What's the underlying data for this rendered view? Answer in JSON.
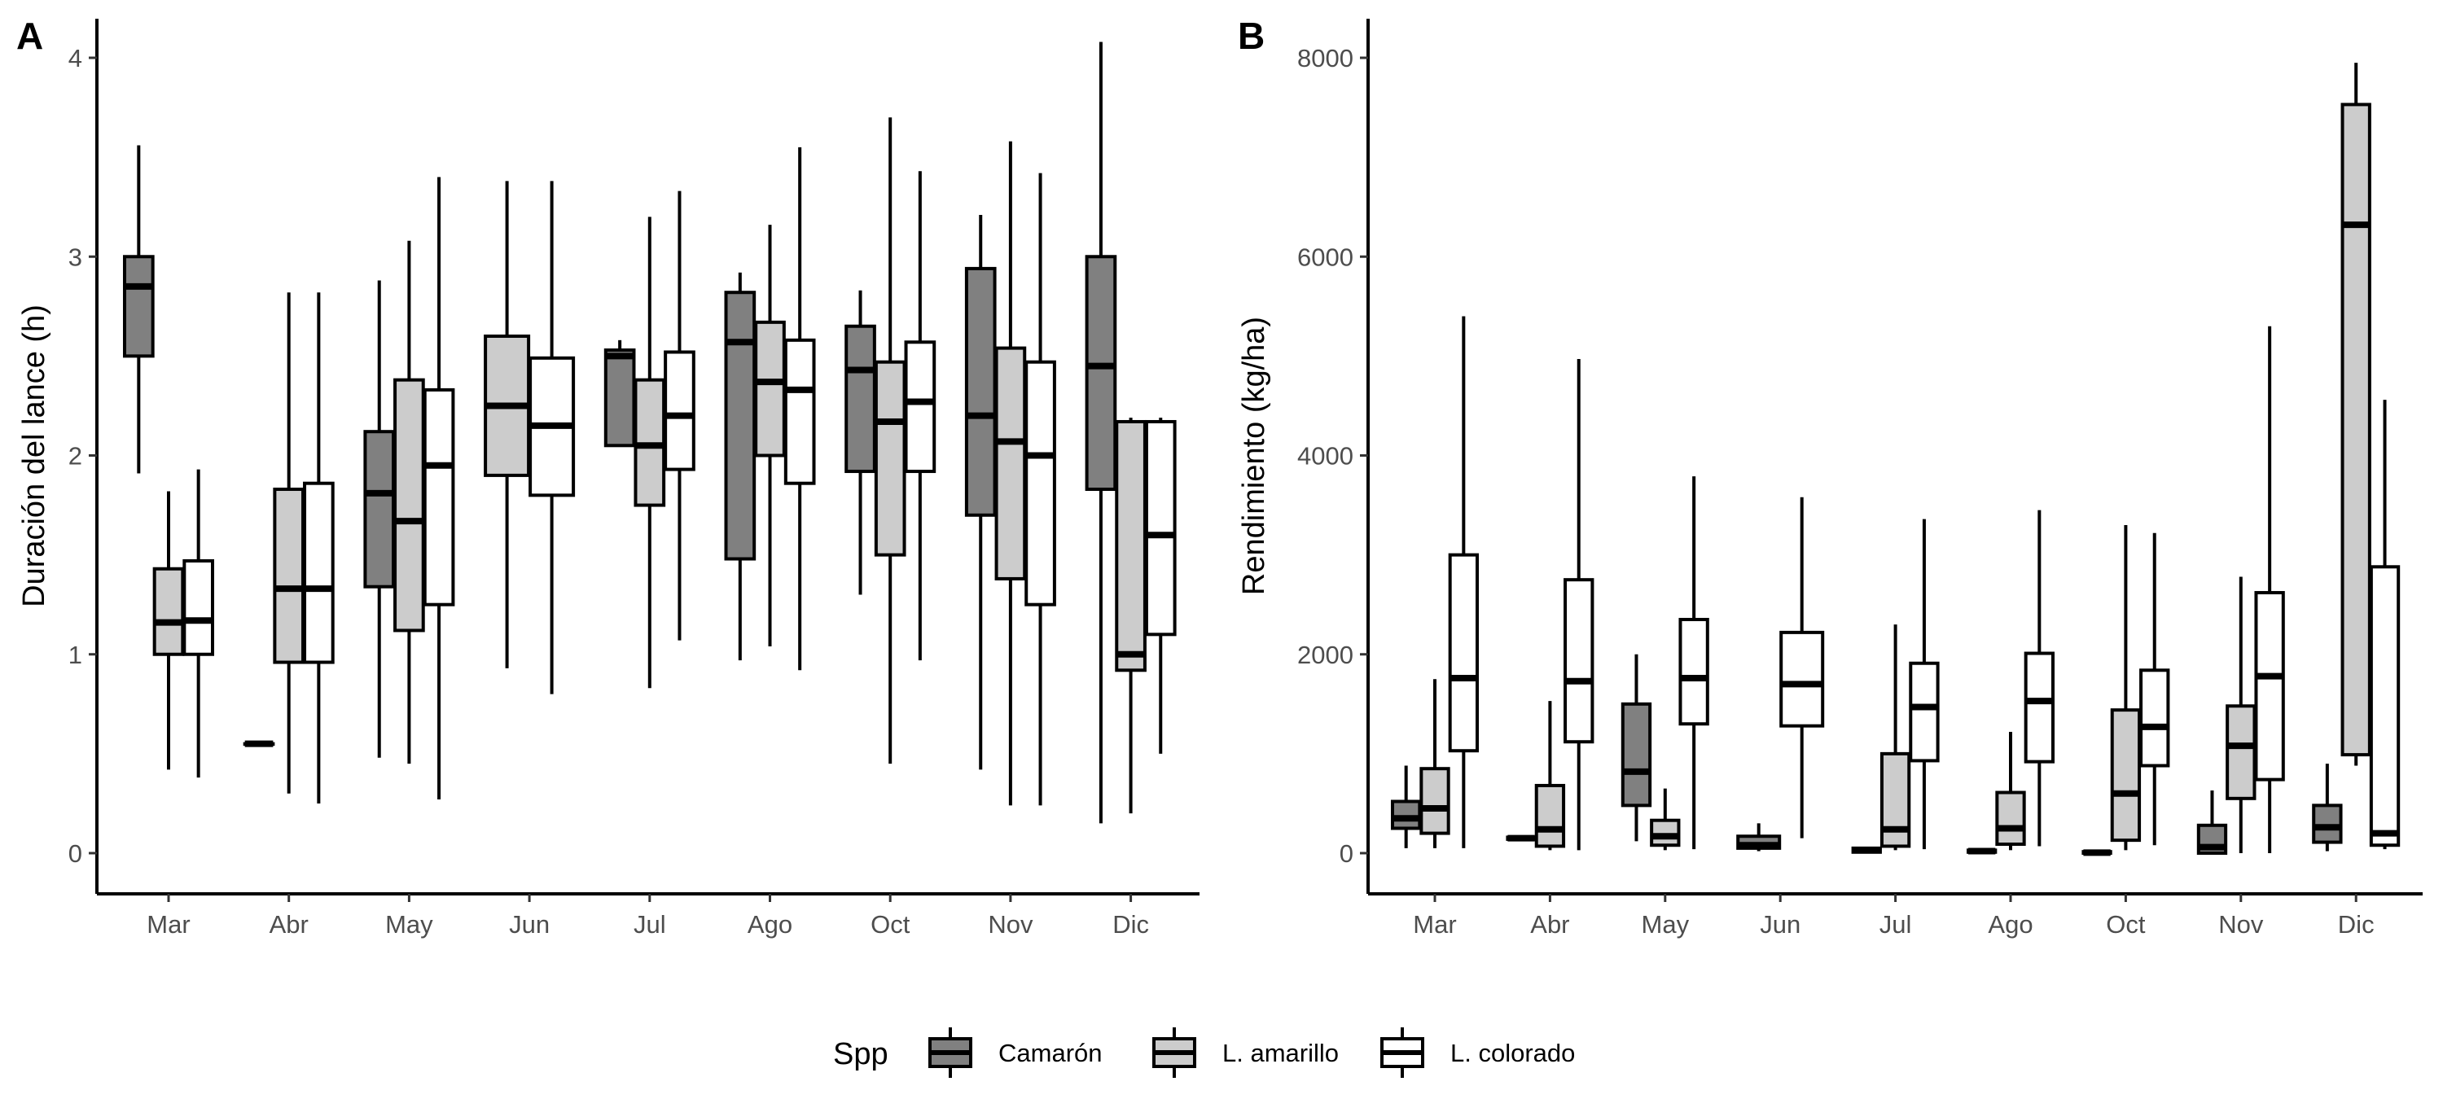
{
  "chart_data": [
    {
      "type": "boxplot",
      "tag": "A",
      "ylabel": "Duración del lance (h)",
      "xlabel": "",
      "categories": [
        "Mar",
        "Abr",
        "May",
        "Jun",
        "Jul",
        "Ago",
        "Oct",
        "Nov",
        "Dic"
      ],
      "ylim": [
        -0.2,
        4.2
      ],
      "yticks": [
        0,
        1,
        2,
        3,
        4
      ],
      "grid": false,
      "series": [
        {
          "name": "Camarón",
          "boxes": {
            "Mar": [
              1.91,
              2.5,
              2.85,
              3.0,
              3.56
            ],
            "Abr": [
              0.55,
              0.55,
              0.55,
              0.55,
              0.55
            ],
            "May": [
              0.48,
              1.34,
              1.81,
              2.12,
              2.88
            ],
            "Jul": [
              2.05,
              2.05,
              2.5,
              2.53,
              2.58
            ],
            "Ago": [
              0.97,
              1.48,
              2.57,
              2.82,
              2.92
            ],
            "Oct": [
              1.3,
              1.92,
              2.43,
              2.65,
              2.83
            ],
            "Nov": [
              0.42,
              1.7,
              2.2,
              2.94,
              3.21
            ],
            "Dic": [
              0.15,
              1.83,
              2.45,
              3.0,
              4.08
            ]
          }
        },
        {
          "name": "L. amarillo",
          "boxes": {
            "Mar": [
              0.42,
              1.0,
              1.16,
              1.43,
              1.82
            ],
            "Abr": [
              0.3,
              0.96,
              1.33,
              1.83,
              2.82
            ],
            "May": [
              0.45,
              1.12,
              1.67,
              2.38,
              3.08
            ],
            "Jun": [
              0.93,
              1.9,
              2.25,
              2.6,
              3.38
            ],
            "Jul": [
              0.83,
              1.75,
              2.05,
              2.38,
              3.2
            ],
            "Ago": [
              1.04,
              2.0,
              2.37,
              2.67,
              3.16
            ],
            "Oct": [
              0.45,
              1.5,
              2.17,
              2.47,
              3.7
            ],
            "Nov": [
              0.24,
              1.38,
              2.07,
              2.54,
              3.58
            ],
            "Dic": [
              0.2,
              0.92,
              1.0,
              2.17,
              2.19
            ]
          }
        },
        {
          "name": "L. colorado",
          "boxes": {
            "Mar": [
              0.38,
              1.0,
              1.17,
              1.47,
              1.93
            ],
            "Abr": [
              0.25,
              0.96,
              1.33,
              1.86,
              2.82
            ],
            "May": [
              0.27,
              1.25,
              1.95,
              2.33,
              3.4
            ],
            "Jun": [
              0.8,
              1.8,
              2.15,
              2.49,
              3.38
            ],
            "Jul": [
              1.07,
              1.93,
              2.2,
              2.52,
              3.33
            ],
            "Ago": [
              0.92,
              1.86,
              2.33,
              2.58,
              3.55
            ],
            "Oct": [
              0.97,
              1.92,
              2.27,
              2.57,
              3.43
            ],
            "Nov": [
              0.24,
              1.25,
              2.0,
              2.47,
              3.42
            ],
            "Dic": [
              0.5,
              1.1,
              1.6,
              2.17,
              2.19
            ]
          }
        }
      ]
    },
    {
      "type": "boxplot",
      "tag": "B",
      "ylabel": "Rendimiento (kg/ha)",
      "xlabel": "",
      "categories": [
        "Mar",
        "Abr",
        "May",
        "Jun",
        "Jul",
        "Ago",
        "Oct",
        "Nov",
        "Dic"
      ],
      "ylim": [
        -400,
        8400
      ],
      "yticks": [
        0,
        2000,
        4000,
        6000,
        8000
      ],
      "grid": false,
      "series": [
        {
          "name": "Camarón",
          "boxes": {
            "Mar": [
              50,
              250,
              350,
              520,
              880
            ],
            "Abr": [
              140,
              140,
              150,
              160,
              160
            ],
            "May": [
              120,
              480,
              820,
              1500,
              2000
            ],
            "Jun": [
              20,
              50,
              80,
              170,
              300
            ],
            "Jul": [
              10,
              10,
              30,
              50,
              60
            ],
            "Ago": [
              10,
              10,
              20,
              30,
              40
            ],
            "Oct": [
              0,
              0,
              5,
              15,
              20
            ],
            "Nov": [
              0,
              0,
              60,
              280,
              630
            ],
            "Dic": [
              20,
              110,
              260,
              480,
              900
            ]
          }
        },
        {
          "name": "L. amarillo",
          "boxes": {
            "Mar": [
              50,
              200,
              450,
              850,
              1750
            ],
            "Abr": [
              30,
              70,
              240,
              680,
              1530
            ],
            "May": [
              30,
              80,
              170,
              330,
              650
            ],
            "Jul": [
              30,
              70,
              240,
              1000,
              2300
            ],
            "Ago": [
              30,
              90,
              250,
              610,
              1220
            ],
            "Oct": [
              30,
              130,
              600,
              1440,
              3300
            ],
            "Nov": [
              0,
              550,
              1080,
              1480,
              2780
            ],
            "Dic": [
              880,
              990,
              6320,
              7530,
              7950
            ]
          }
        },
        {
          "name": "L. colorado",
          "boxes": {
            "Mar": [
              50,
              1030,
              1760,
              3000,
              5400
            ],
            "Abr": [
              30,
              1120,
              1730,
              2750,
              4970
            ],
            "May": [
              40,
              1300,
              1760,
              2350,
              3790
            ],
            "Jun": [
              150,
              1280,
              1700,
              2220,
              3580
            ],
            "Jul": [
              40,
              930,
              1470,
              1910,
              3360
            ],
            "Ago": [
              70,
              920,
              1530,
              2010,
              3450
            ],
            "Oct": [
              80,
              880,
              1270,
              1840,
              3220
            ],
            "Nov": [
              0,
              740,
              1780,
              2620,
              5300
            ],
            "Dic": [
              40,
              80,
              200,
              2880,
              4560
            ]
          }
        }
      ]
    }
  ],
  "legend": {
    "title": "Spp",
    "position": "bottom",
    "items": [
      {
        "label": "Camarón",
        "color": "#808080"
      },
      {
        "label": "L. amarillo",
        "color": "#cccccc"
      },
      {
        "label": "L. colorado",
        "color": "#ffffff"
      }
    ]
  }
}
